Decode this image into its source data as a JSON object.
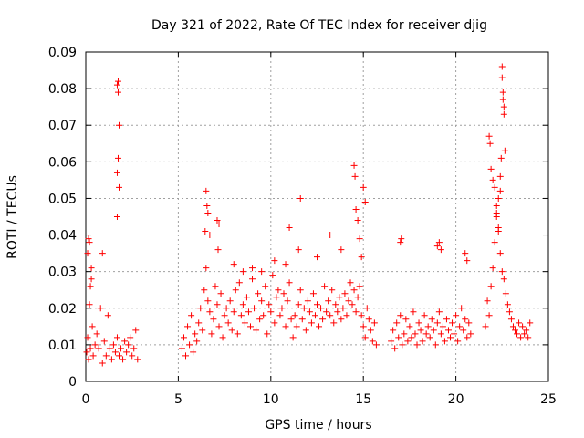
{
  "chart_data": {
    "type": "scatter",
    "title": "Day 321 of 2022, Rate Of TEC Index for receiver djig",
    "xlabel": "GPS time / hours",
    "ylabel": "ROTI / TECUs",
    "xlim": [
      0,
      25
    ],
    "ylim": [
      0,
      0.09
    ],
    "x_ticks": [
      "0",
      "5",
      "10",
      "15",
      "20",
      "25"
    ],
    "y_ticks": [
      "0",
      "0.01",
      "0.02",
      "0.03",
      "0.04",
      "0.05",
      "0.06",
      "0.07",
      "0.08",
      "0.09"
    ],
    "grid": true,
    "marker": "+",
    "color": "#ff0000",
    "series": [
      {
        "name": "",
        "x": [
          0.05,
          0.1,
          0.15,
          0.2,
          0.25,
          0.3,
          0.35,
          0.4,
          0.5,
          0.6,
          0.7,
          0.8,
          0.9,
          1.0,
          1.1,
          1.2,
          1.3,
          1.4,
          1.5,
          1.6,
          1.7,
          1.8,
          1.9,
          2.0,
          2.1,
          2.2,
          2.3,
          2.4,
          2.5,
          2.6,
          2.7,
          2.8,
          0.1,
          0.2,
          0.3,
          1.7,
          1.75,
          1.8,
          1.75,
          1.7,
          1.8,
          1.7,
          1.75,
          0.9,
          0.15,
          0.25,
          5.2,
          5.3,
          5.4,
          5.5,
          5.6,
          5.7,
          5.8,
          5.9,
          6.0,
          6.1,
          6.2,
          6.3,
          6.4,
          6.5,
          6.6,
          6.7,
          6.8,
          6.9,
          7.0,
          7.1,
          7.2,
          7.3,
          7.4,
          7.5,
          7.6,
          7.7,
          7.8,
          7.9,
          8.0,
          8.1,
          8.2,
          8.3,
          8.4,
          8.5,
          8.6,
          8.7,
          8.8,
          8.9,
          9.0,
          9.1,
          9.2,
          9.3,
          9.4,
          9.5,
          9.6,
          9.7,
          9.8,
          9.9,
          10.0,
          10.1,
          10.2,
          10.3,
          10.4,
          10.5,
          10.6,
          10.7,
          10.8,
          10.9,
          11.0,
          11.1,
          6.5,
          6.6,
          6.55,
          6.7,
          6.45,
          7.1,
          7.2,
          7.15,
          8.0,
          8.5,
          9.0,
          9.5,
          10.2,
          10.8,
          11.0,
          11.5,
          11.6,
          11.2,
          11.3,
          11.4,
          11.5,
          11.6,
          11.7,
          11.8,
          11.9,
          12.0,
          12.1,
          12.2,
          12.3,
          12.4,
          12.5,
          12.6,
          12.7,
          12.8,
          12.9,
          13.0,
          13.1,
          13.2,
          13.3,
          13.4,
          13.5,
          13.6,
          13.7,
          13.8,
          13.9,
          14.0,
          14.1,
          14.2,
          14.3,
          14.4,
          14.5,
          14.6,
          14.7,
          14.8,
          14.9,
          15.0,
          15.1,
          15.2,
          15.3,
          15.4,
          15.5,
          15.6,
          15.7,
          14.5,
          14.55,
          14.6,
          14.7,
          14.8,
          15.0,
          15.1,
          14.9,
          13.8,
          13.2,
          12.5,
          16.5,
          16.6,
          16.7,
          16.8,
          16.9,
          17.0,
          17.1,
          17.2,
          17.3,
          17.4,
          17.5,
          17.6,
          17.7,
          17.8,
          17.9,
          18.0,
          18.1,
          18.2,
          18.3,
          18.4,
          18.5,
          18.6,
          18.7,
          18.8,
          18.9,
          19.0,
          19.1,
          19.2,
          19.3,
          19.4,
          19.5,
          19.6,
          19.7,
          19.8,
          19.9,
          20.0,
          20.1,
          20.2,
          20.3,
          20.4,
          20.5,
          20.6,
          20.7,
          20.8,
          17.0,
          17.05,
          19.0,
          19.1,
          19.2,
          20.5,
          20.6,
          21.6,
          21.7,
          21.8,
          21.9,
          22.0,
          22.1,
          22.2,
          22.3,
          22.4,
          22.5,
          22.6,
          22.7,
          22.8,
          22.9,
          23.0,
          23.1,
          23.2,
          23.3,
          23.4,
          23.5,
          23.6,
          23.7,
          23.8,
          23.9,
          24.0,
          21.8,
          21.85,
          21.9,
          22.0,
          22.1,
          22.2,
          22.3,
          22.4,
          22.45,
          22.5,
          22.55,
          22.6,
          22.5,
          22.55,
          22.6,
          22.65,
          22.4,
          22.3,
          22.2
        ],
        "y": [
          0.008,
          0.012,
          0.006,
          0.021,
          0.009,
          0.028,
          0.015,
          0.007,
          0.01,
          0.013,
          0.009,
          0.02,
          0.005,
          0.011,
          0.007,
          0.018,
          0.009,
          0.006,
          0.01,
          0.008,
          0.012,
          0.007,
          0.009,
          0.006,
          0.011,
          0.008,
          0.01,
          0.012,
          0.007,
          0.009,
          0.014,
          0.006,
          0.035,
          0.038,
          0.031,
          0.081,
          0.079,
          0.07,
          0.061,
          0.057,
          0.053,
          0.045,
          0.082,
          0.035,
          0.039,
          0.026,
          0.009,
          0.012,
          0.007,
          0.015,
          0.01,
          0.018,
          0.008,
          0.013,
          0.011,
          0.016,
          0.02,
          0.014,
          0.025,
          0.031,
          0.022,
          0.019,
          0.013,
          0.017,
          0.026,
          0.021,
          0.015,
          0.024,
          0.012,
          0.018,
          0.02,
          0.016,
          0.022,
          0.014,
          0.019,
          0.025,
          0.013,
          0.027,
          0.018,
          0.021,
          0.016,
          0.023,
          0.019,
          0.015,
          0.028,
          0.02,
          0.014,
          0.024,
          0.017,
          0.022,
          0.018,
          0.026,
          0.013,
          0.021,
          0.019,
          0.029,
          0.016,
          0.023,
          0.025,
          0.018,
          0.02,
          0.024,
          0.015,
          0.022,
          0.027,
          0.017,
          0.052,
          0.046,
          0.048,
          0.04,
          0.041,
          0.044,
          0.043,
          0.036,
          0.032,
          0.03,
          0.031,
          0.03,
          0.033,
          0.032,
          0.042,
          0.036,
          0.05,
          0.012,
          0.018,
          0.015,
          0.021,
          0.025,
          0.017,
          0.02,
          0.014,
          0.022,
          0.019,
          0.016,
          0.024,
          0.018,
          0.021,
          0.015,
          0.02,
          0.017,
          0.026,
          0.019,
          0.022,
          0.018,
          0.025,
          0.016,
          0.021,
          0.019,
          0.023,
          0.017,
          0.02,
          0.024,
          0.018,
          0.022,
          0.027,
          0.021,
          0.025,
          0.019,
          0.023,
          0.026,
          0.018,
          0.015,
          0.012,
          0.02,
          0.017,
          0.014,
          0.011,
          0.016,
          0.01,
          0.059,
          0.056,
          0.047,
          0.044,
          0.039,
          0.053,
          0.049,
          0.034,
          0.036,
          0.04,
          0.034,
          0.011,
          0.014,
          0.009,
          0.016,
          0.012,
          0.018,
          0.01,
          0.013,
          0.017,
          0.011,
          0.015,
          0.012,
          0.019,
          0.013,
          0.01,
          0.016,
          0.014,
          0.011,
          0.018,
          0.013,
          0.015,
          0.012,
          0.017,
          0.014,
          0.01,
          0.016,
          0.019,
          0.013,
          0.015,
          0.011,
          0.017,
          0.014,
          0.012,
          0.016,
          0.013,
          0.018,
          0.011,
          0.015,
          0.02,
          0.014,
          0.017,
          0.012,
          0.016,
          0.013,
          0.038,
          0.039,
          0.037,
          0.038,
          0.036,
          0.035,
          0.033,
          0.015,
          0.022,
          0.018,
          0.026,
          0.031,
          0.038,
          0.045,
          0.041,
          0.035,
          0.03,
          0.028,
          0.024,
          0.021,
          0.019,
          0.017,
          0.015,
          0.014,
          0.013,
          0.016,
          0.012,
          0.015,
          0.013,
          0.014,
          0.012,
          0.016,
          0.067,
          0.065,
          0.058,
          0.055,
          0.053,
          0.048,
          0.05,
          0.052,
          0.061,
          0.086,
          0.077,
          0.073,
          0.083,
          0.079,
          0.075,
          0.063,
          0.056,
          0.042,
          0.046
        ]
      }
    ]
  }
}
